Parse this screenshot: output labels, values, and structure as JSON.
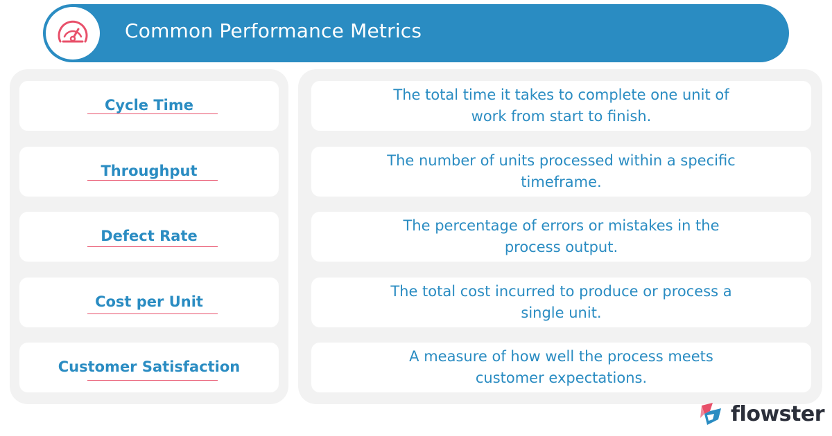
{
  "header": {
    "title": "Common Performance Metrics",
    "icon": "speedometer-icon"
  },
  "metrics": [
    {
      "name": "Cycle Time",
      "description": "The total time it takes to complete one unit of work from start to finish."
    },
    {
      "name": "Throughput",
      "description": "The number of units processed within a specific timeframe."
    },
    {
      "name": "Defect Rate",
      "description": "The percentage of errors or mistakes in the process output."
    },
    {
      "name": "Cost per Unit",
      "description": "The total cost incurred to produce or process a single unit."
    },
    {
      "name": "Customer Satisfaction",
      "description": "A measure of how well the process meets customer expectations."
    }
  ],
  "brand": {
    "name": "flowster",
    "icon": "flowster-logo-icon"
  },
  "colors": {
    "primary": "#2a8cc2",
    "accent": "#e8506a",
    "panel": "#f2f2f2"
  }
}
